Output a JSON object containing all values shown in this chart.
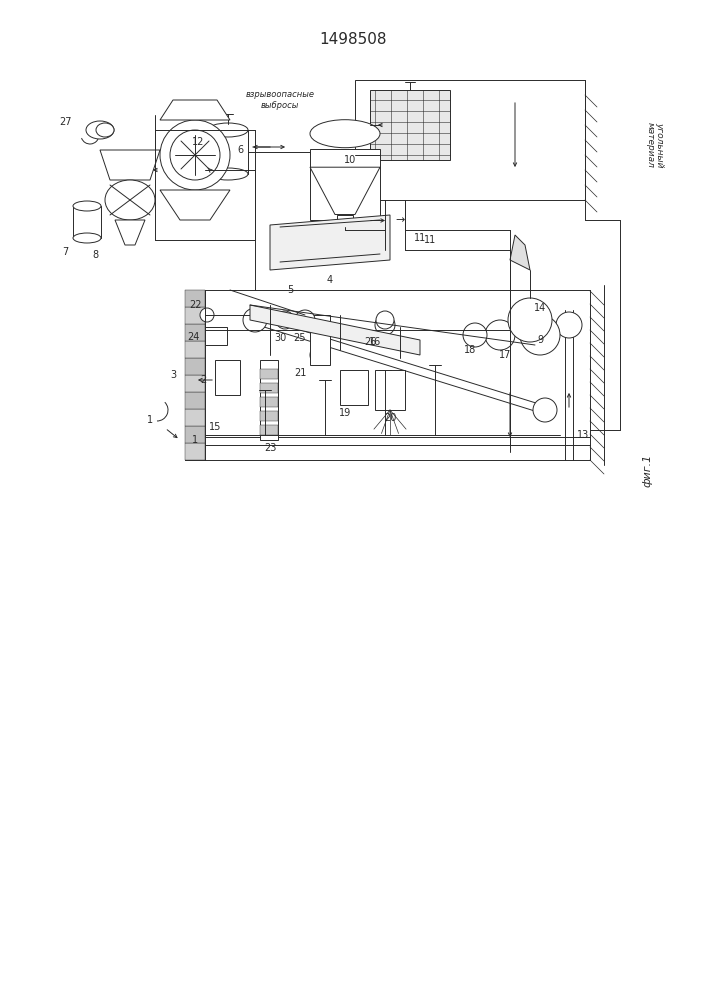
{
  "title": "1498508",
  "bg_color": "#ffffff",
  "line_color": "#2a2a2a",
  "fig_label": "фиг.1",
  "text_ugolny": "угольный\nматериал",
  "text_vzryv": "взрывоопасные\nвыбросы"
}
